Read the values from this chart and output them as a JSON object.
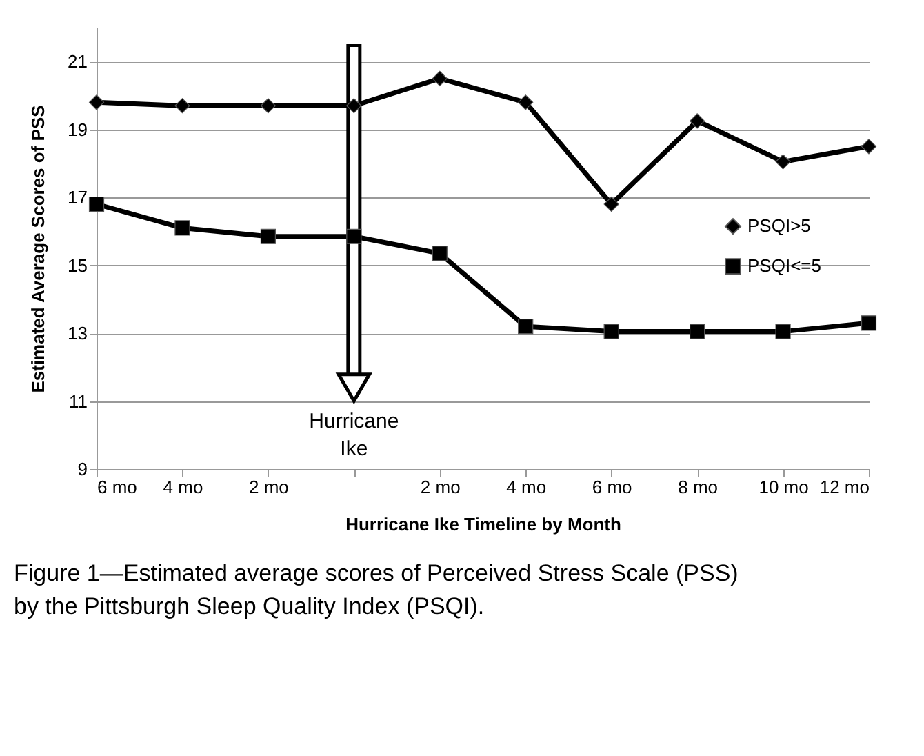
{
  "chart_data": {
    "type": "line",
    "xlabel": "Hurricane Ike Timeline by Month",
    "ylabel": "Estimated Average Scores of PSS",
    "categories": [
      "6 mo",
      "4 mo",
      "2 mo",
      null,
      "2 mo",
      "4 mo",
      "6 mo",
      "8 mo",
      "10 mo",
      "12 mo"
    ],
    "series": [
      {
        "name": "PSQI>5",
        "color": "#000000",
        "marker": "diamond",
        "values": [
          19.8,
          19.7,
          19.7,
          19.7,
          20.5,
          19.8,
          16.8,
          19.25,
          18.05,
          18.5
        ]
      },
      {
        "name": "PSQI<=5",
        "color": "#000000",
        "marker": "square",
        "values": [
          16.8,
          16.1,
          15.85,
          15.85,
          15.35,
          13.2,
          13.05,
          13.05,
          13.05,
          13.3
        ]
      }
    ],
    "ylim": [
      9,
      22
    ],
    "yticks": [
      9,
      11,
      13,
      15,
      17,
      19,
      21
    ],
    "grid": "y",
    "legend": "right",
    "line_style": "solid",
    "annotations": [
      "Hurricane Ike",
      "Figure 1—Estimated average scores of Perceived Stress Scale (PSS) by the Pittsburgh Sleep Quality Index (PSQI)."
    ]
  }
}
